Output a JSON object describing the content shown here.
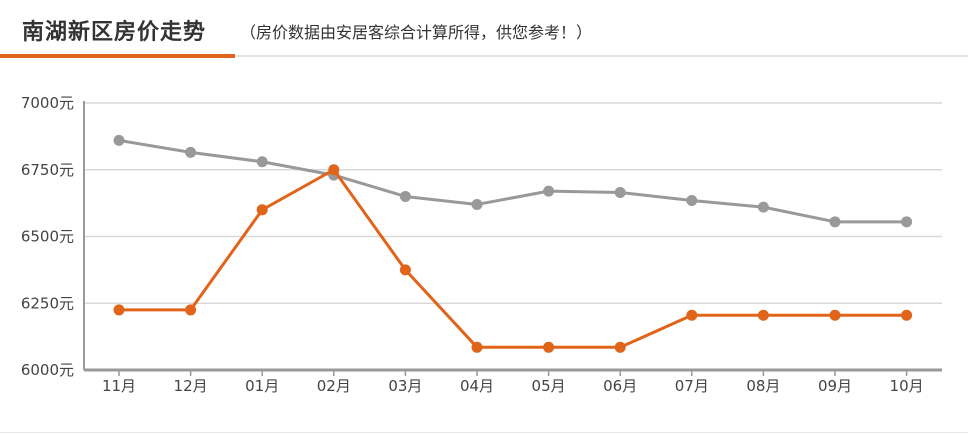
{
  "header": {
    "title": "南湖新区房价走势",
    "subtitle": "（房价数据由安居客综合计算所得，供您参考！）"
  },
  "colors": {
    "accent": "#e0651b",
    "series_orange": "#e0651b",
    "series_gray": "#999999",
    "grid": "#d9d9d9",
    "axis": "#999999"
  },
  "chart_data": {
    "type": "line",
    "title": "南湖新区房价走势",
    "subtitle": "（房价数据由安居客综合计算所得，供您参考！）",
    "xlabel": "",
    "ylabel": "",
    "categories": [
      "11月",
      "12月",
      "01月",
      "02月",
      "03月",
      "04月",
      "05月",
      "06月",
      "07月",
      "08月",
      "09月",
      "10月"
    ],
    "y_ticks": [
      "7000元",
      "6750元",
      "6500元",
      "6250元",
      "6000元"
    ],
    "ylim": [
      6000,
      7000
    ],
    "grid": true,
    "legend": "none",
    "series": [
      {
        "values": [
          6860,
          6815,
          6780,
          6730,
          6650,
          6620,
          6670,
          6665,
          6635,
          6610,
          6555,
          6555
        ],
        "color": "#999999"
      },
      {
        "values": [
          6225,
          6225,
          6600,
          6750,
          6375,
          6085,
          6085,
          6085,
          6205,
          6205,
          6205,
          6205
        ],
        "color": "#e0651b"
      }
    ]
  }
}
